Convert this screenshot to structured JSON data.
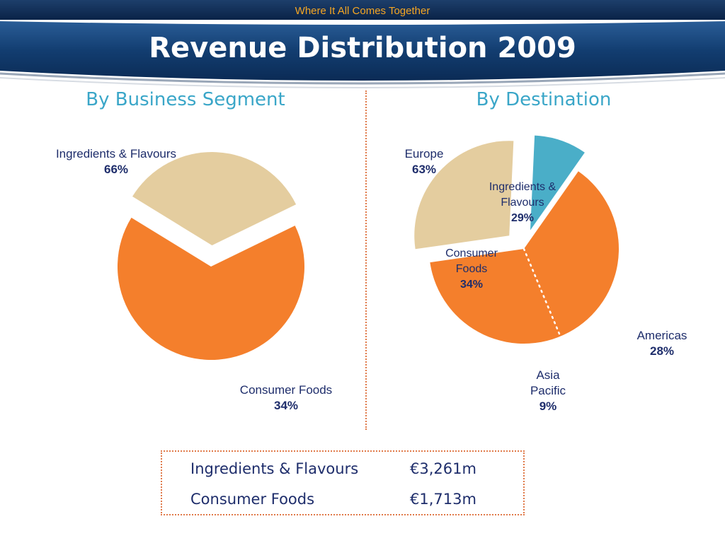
{
  "header": {
    "tagline": "Where It All Comes Together",
    "title": "Revenue Distribution 2009"
  },
  "colors": {
    "banner_dark": "#0b2b55",
    "banner_mid": "#1c4c86",
    "orange": "#f47f2c",
    "tan": "#e4cd9f",
    "teal": "#4aaec8",
    "text_navy": "#1e2d6b",
    "subtitle_blue": "#3aa6c8"
  },
  "chart_data": [
    {
      "type": "pie",
      "title": "By Business Segment",
      "slices": [
        {
          "label": "Ingredients & Flavours",
          "value": 66,
          "pct_text": "66%",
          "color": "#f47f2c",
          "exploded": false
        },
        {
          "label": "Consumer Foods",
          "value": 34,
          "pct_text": "34%",
          "color": "#e4cd9f",
          "exploded": true
        }
      ]
    },
    {
      "type": "pie",
      "title": "By Destination",
      "slices": [
        {
          "label": "Europe",
          "value": 63,
          "pct_text": "63%",
          "color": "#f47f2c",
          "exploded": false,
          "sub_slices": [
            {
              "label": "Ingredients & Flavours",
              "label_lines": [
                "Ingredients &",
                "Flavours"
              ],
              "value": 29,
              "pct_text": "29%"
            },
            {
              "label": "Consumer Foods",
              "label_lines": [
                "Consumer",
                "Foods"
              ],
              "value": 34,
              "pct_text": "34%"
            }
          ]
        },
        {
          "label": "Americas",
          "value": 28,
          "pct_text": "28%",
          "color": "#e4cd9f",
          "exploded": true
        },
        {
          "label": "Asia Pacific",
          "label_lines": [
            "Asia",
            "Pacific"
          ],
          "value": 9,
          "pct_text": "9%",
          "color": "#4aaec8",
          "exploded": true
        }
      ]
    }
  ],
  "summary": [
    {
      "name": "Ingredients & Flavours",
      "value": "€3,261m"
    },
    {
      "name": "Consumer Foods",
      "value": "€1,713m"
    }
  ]
}
